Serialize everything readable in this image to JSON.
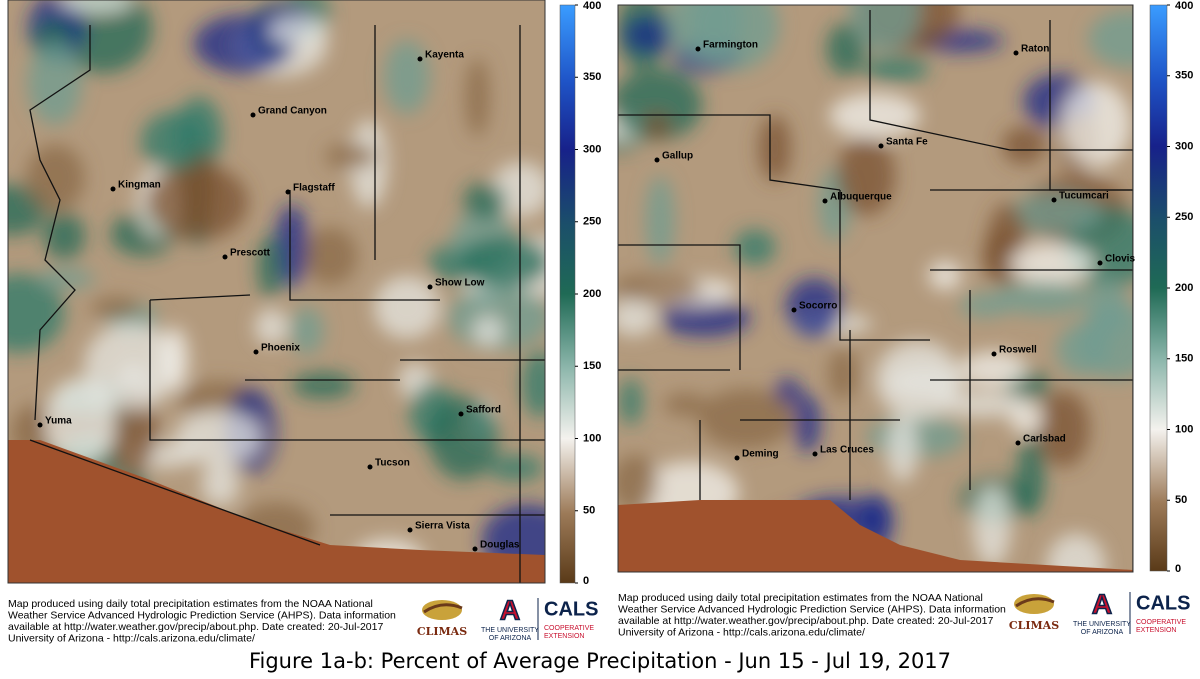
{
  "maps": [
    {
      "cities": [
        "Kayenta",
        "Grand Canyon",
        "Kingman",
        "Flagstaff",
        "Prescott",
        "Show Low",
        "Phoenix",
        "Yuma",
        "Safford",
        "Tucson",
        "Sierra Vista",
        "Douglas"
      ],
      "colorbar": {
        "lim": [
          0,
          400
        ],
        "ticks": [
          0,
          50,
          100,
          150,
          200,
          250,
          300,
          350,
          400
        ]
      },
      "note": [
        "Map produced using daily total precipitation estimates from the NOAA National",
        "Weather Service Advanced Hydrologic Prediction Service (AHPS). Data information",
        "available at http://water.weather.gov/precip/about.php. Date created: 20-Jul-2017",
        "University of Arizona - http://cals.arizona.edu/climate/"
      ],
      "logos": {
        "climas": "CLIMAS",
        "university": [
          "THE UNIVERSITY",
          "OF ARIZONA"
        ],
        "cals": "CALS",
        "extension": [
          "COOPERATIVE",
          "EXTENSION"
        ]
      }
    },
    {
      "cities": [
        "Farmington",
        "Raton",
        "Gallup",
        "Santa Fe",
        "Albuquerque",
        "Tucumcari",
        "Clovis",
        "Socorro",
        "Roswell",
        "Carlsbad",
        "Deming",
        "Las Cruces"
      ],
      "colorbar": {
        "lim": [
          0,
          400
        ],
        "ticks": [
          0,
          50,
          100,
          150,
          200,
          250,
          300,
          350,
          400
        ]
      },
      "note": [
        "Map produced using daily total precipitation estimates from the NOAA National",
        "Weather Service Advanced Hydrologic Prediction Service (AHPS). Data information",
        "available at http://water.weather.gov/precip/about.php. Date created: 20-Jul-2017",
        "University of Arizona - http://cals.arizona.edu/climate/"
      ],
      "logos": {
        "climas": "CLIMAS",
        "university": [
          "THE UNIVERSITY",
          "OF ARIZONA"
        ],
        "cals": "CALS",
        "extension": [
          "COOPERATIVE",
          "EXTENSION"
        ]
      }
    }
  ],
  "caption": "Figure 1a-b: Percent of Average Precipitation - Jun 15 - Jul 19, 2017"
}
